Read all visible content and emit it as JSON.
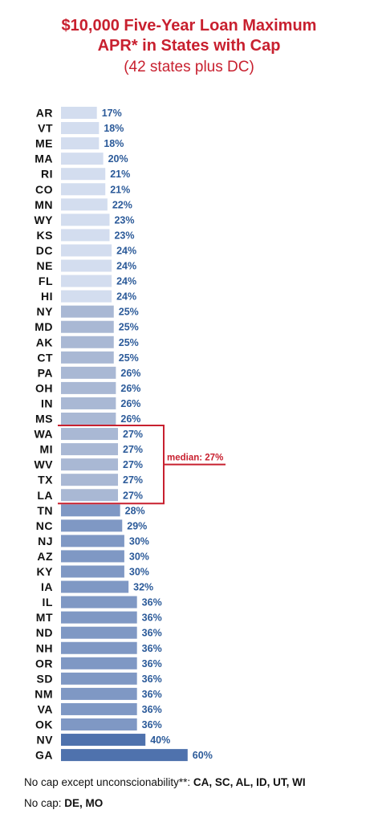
{
  "title_line1": "$10,000 Five-Year Loan Maximum",
  "title_line2": "APR* in States with Cap",
  "subtitle": "(42 states plus DC)",
  "chart_data": {
    "type": "bar",
    "orientation": "horizontal",
    "categories": [
      "AR",
      "VT",
      "ME",
      "MA",
      "RI",
      "CO",
      "MN",
      "WY",
      "KS",
      "DC",
      "NE",
      "FL",
      "HI",
      "NY",
      "MD",
      "AK",
      "CT",
      "PA",
      "OH",
      "IN",
      "MS",
      "WA",
      "MI",
      "WV",
      "TX",
      "LA",
      "TN",
      "NC",
      "NJ",
      "AZ",
      "KY",
      "IA",
      "IL",
      "MT",
      "ND",
      "NH",
      "OR",
      "SD",
      "NM",
      "VA",
      "OK",
      "NV",
      "GA"
    ],
    "values": [
      17,
      18,
      18,
      20,
      21,
      21,
      22,
      23,
      23,
      24,
      24,
      24,
      24,
      25,
      25,
      25,
      25,
      26,
      26,
      26,
      26,
      27,
      27,
      27,
      27,
      27,
      28,
      29,
      30,
      30,
      30,
      32,
      36,
      36,
      36,
      36,
      36,
      36,
      36,
      36,
      36,
      40,
      60
    ],
    "value_labels": [
      "17%",
      "18%",
      "18%",
      "20%",
      "21%",
      "21%",
      "22%",
      "23%",
      "23%",
      "24%",
      "24%",
      "24%",
      "24%",
      "25%",
      "25%",
      "25%",
      "25%",
      "26%",
      "26%",
      "26%",
      "26%",
      "27%",
      "27%",
      "27%",
      "27%",
      "27%",
      "28%",
      "29%",
      "30%",
      "30%",
      "30%",
      "32%",
      "36%",
      "36%",
      "36%",
      "36%",
      "36%",
      "36%",
      "36%",
      "36%",
      "36%",
      "40%",
      "60%"
    ],
    "annotation": "median: 27%",
    "median_group": [
      "WA",
      "MI",
      "WV",
      "TX",
      "LA"
    ],
    "colors": {
      "tier1": "#d3ddef",
      "tier2": "#a9b8d4",
      "tier3": "#7f98c4",
      "tier4": "#4f72ad",
      "value_label": "#2b5a99",
      "median": "#c8202f"
    }
  },
  "footnote1_text": "No cap except unconscionability**: ",
  "footnote1_states": "CA, SC, AL, ID, UT, WI",
  "footnote2_text": "No cap: ",
  "footnote2_states": "DE, MO"
}
